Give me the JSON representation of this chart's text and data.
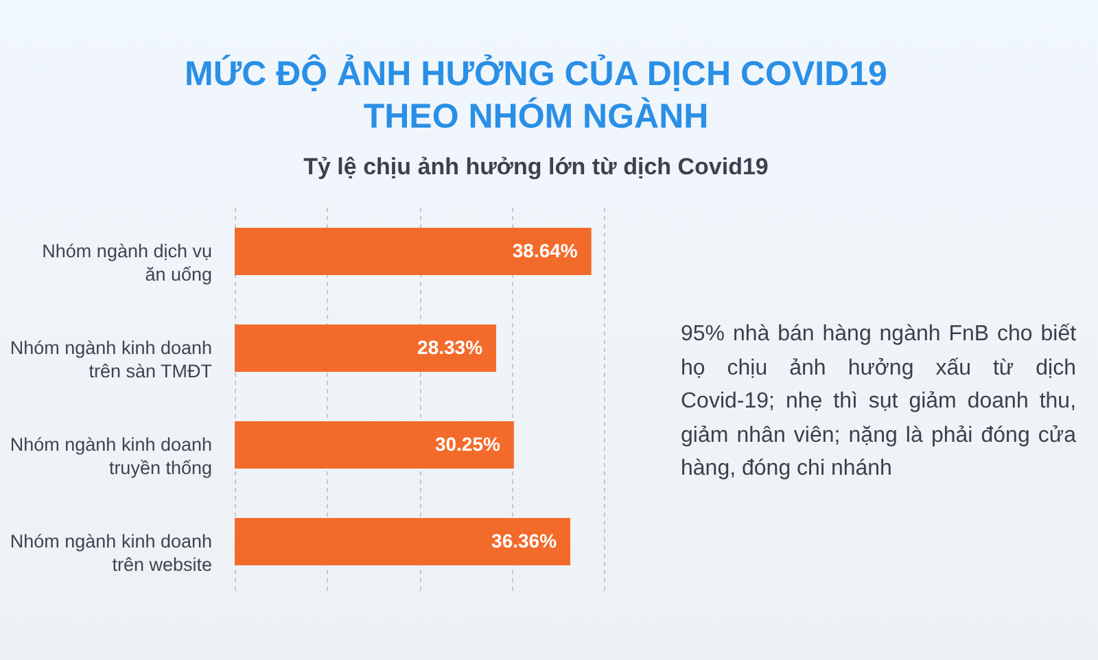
{
  "chart_data": {
    "type": "bar",
    "orientation": "horizontal",
    "title": "MỨC ĐỘ ẢNH HƯỞNG CỦA DỊCH COVID19\nTHEO NHÓM NGÀNH",
    "subtitle": "Tỷ lệ chịu ảnh hưởng lớn từ dịch Covid19",
    "categories": [
      "Nhóm ngành dịch vụ\năn uống",
      "Nhóm ngành kinh doanh\ntrên sàn TMĐT",
      "Nhóm ngành kinh doanh\ntruyền thống",
      "Nhóm ngành kinh doanh\ntrên website"
    ],
    "series": [
      {
        "color": "#f36b2b",
        "values": [
          38.64,
          28.33,
          30.25,
          36.36
        ],
        "value_labels": [
          "38.64%",
          "28.33%",
          "30.25%",
          "36.36%"
        ]
      }
    ],
    "xlim": [
      0,
      40
    ],
    "xticks": [
      {
        "value": 0,
        "label": null
      },
      {
        "value": 10,
        "label": null
      },
      {
        "value": 20,
        "label": null
      },
      {
        "value": 30,
        "label": null
      },
      {
        "value": 40,
        "label": null
      }
    ],
    "grid": "x",
    "tick_labels": "y",
    "annotations": [
      "95% nhà bán hàng ngành FnB cho biết họ chịu ảnh hưởng xấu từ dịch Covid-19; nhẹ thì sụt giảm doanh thu, giảm nhân viên; nặng là phải đóng cửa hàng, đóng chi nhánh"
    ]
  }
}
